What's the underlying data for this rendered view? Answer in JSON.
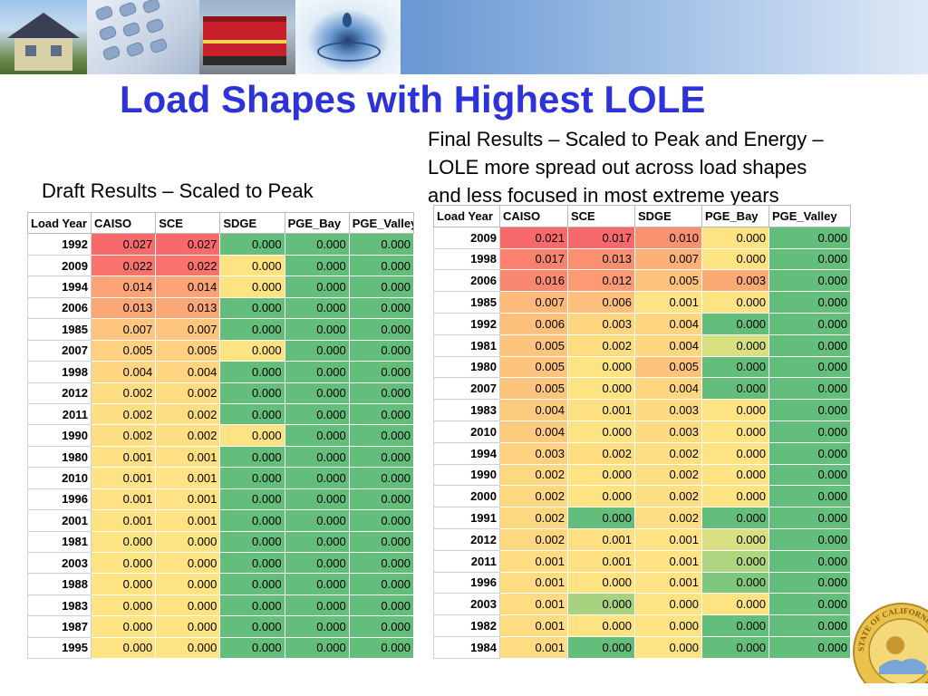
{
  "title": "Load Shapes with Highest LOLE",
  "final_caption_lines": [
    "Final Results – Scaled to Peak and Energy –",
    "LOLE more spread out across load shapes",
    "and less focused in most extreme years"
  ],
  "draft_caption": "Draft Results – Scaled to Peak",
  "seal_text": "STATE OF CALIFORNIA · COMMISSION",
  "headers": [
    "Load Year",
    "CAISO",
    "SCE",
    "SDGE",
    "PGE_Bay",
    "PGE_Valley"
  ],
  "draft_rows": [
    [
      "1992",
      "0.027",
      "0.027",
      "0.000",
      "0.000",
      "0.000"
    ],
    [
      "2009",
      "0.022",
      "0.022",
      "0.000",
      "0.000",
      "0.000"
    ],
    [
      "1994",
      "0.014",
      "0.014",
      "0.000",
      "0.000",
      "0.000"
    ],
    [
      "2006",
      "0.013",
      "0.013",
      "0.000",
      "0.000",
      "0.000"
    ],
    [
      "1985",
      "0.007",
      "0.007",
      "0.000",
      "0.000",
      "0.000"
    ],
    [
      "2007",
      "0.005",
      "0.005",
      "0.000",
      "0.000",
      "0.000"
    ],
    [
      "1998",
      "0.004",
      "0.004",
      "0.000",
      "0.000",
      "0.000"
    ],
    [
      "2012",
      "0.002",
      "0.002",
      "0.000",
      "0.000",
      "0.000"
    ],
    [
      "2011",
      "0.002",
      "0.002",
      "0.000",
      "0.000",
      "0.000"
    ],
    [
      "1990",
      "0.002",
      "0.002",
      "0.000",
      "0.000",
      "0.000"
    ],
    [
      "1980",
      "0.001",
      "0.001",
      "0.000",
      "0.000",
      "0.000"
    ],
    [
      "2010",
      "0.001",
      "0.001",
      "0.000",
      "0.000",
      "0.000"
    ],
    [
      "1996",
      "0.001",
      "0.001",
      "0.000",
      "0.000",
      "0.000"
    ],
    [
      "2001",
      "0.001",
      "0.001",
      "0.000",
      "0.000",
      "0.000"
    ],
    [
      "1981",
      "0.000",
      "0.000",
      "0.000",
      "0.000",
      "0.000"
    ],
    [
      "2003",
      "0.000",
      "0.000",
      "0.000",
      "0.000",
      "0.000"
    ],
    [
      "1988",
      "0.000",
      "0.000",
      "0.000",
      "0.000",
      "0.000"
    ],
    [
      "1983",
      "0.000",
      "0.000",
      "0.000",
      "0.000",
      "0.000"
    ],
    [
      "1987",
      "0.000",
      "0.000",
      "0.000",
      "0.000",
      "0.000"
    ],
    [
      "1995",
      "0.000",
      "0.000",
      "0.000",
      "0.000",
      "0.000"
    ]
  ],
  "draft_colors": [
    [
      "#f8696b",
      "#f8696b",
      "#63be7b",
      "#63be7b",
      "#63be7b"
    ],
    [
      "#f8736c",
      "#f8736c",
      "#fee383",
      "#63be7b",
      "#63be7b"
    ],
    [
      "#fba276",
      "#fba276",
      "#fee383",
      "#63be7b",
      "#63be7b"
    ],
    [
      "#fba776",
      "#fba776",
      "#63be7b",
      "#63be7b",
      "#63be7b"
    ],
    [
      "#fdc57d",
      "#fdc57d",
      "#63be7b",
      "#63be7b",
      "#63be7b"
    ],
    [
      "#fed07f",
      "#fed07f",
      "#fee383",
      "#63be7b",
      "#63be7b"
    ],
    [
      "#fed580",
      "#fed580",
      "#63be7b",
      "#63be7b",
      "#63be7b"
    ],
    [
      "#fedc82",
      "#fedc82",
      "#63be7b",
      "#63be7b",
      "#63be7b"
    ],
    [
      "#fede82",
      "#fede82",
      "#63be7b",
      "#63be7b",
      "#63be7b"
    ],
    [
      "#fede82",
      "#fede82",
      "#fee383",
      "#63be7b",
      "#63be7b"
    ],
    [
      "#fee183",
      "#fee183",
      "#63be7b",
      "#63be7b",
      "#63be7b"
    ],
    [
      "#fee283",
      "#fee283",
      "#63be7b",
      "#63be7b",
      "#63be7b"
    ],
    [
      "#fee283",
      "#fee283",
      "#63be7b",
      "#63be7b",
      "#63be7b"
    ],
    [
      "#fee283",
      "#fee283",
      "#63be7b",
      "#63be7b",
      "#63be7b"
    ],
    [
      "#fee383",
      "#fee383",
      "#63be7b",
      "#63be7b",
      "#63be7b"
    ],
    [
      "#fee383",
      "#fee383",
      "#63be7b",
      "#63be7b",
      "#63be7b"
    ],
    [
      "#fee383",
      "#fee383",
      "#63be7b",
      "#63be7b",
      "#63be7b"
    ],
    [
      "#fee383",
      "#fee383",
      "#63be7b",
      "#63be7b",
      "#63be7b"
    ],
    [
      "#fee383",
      "#fee383",
      "#63be7b",
      "#63be7b",
      "#63be7b"
    ],
    [
      "#fee383",
      "#fee383",
      "#63be7b",
      "#63be7b",
      "#63be7b"
    ]
  ],
  "final_rows": [
    [
      "2009",
      "0.021",
      "0.017",
      "0.010",
      "0.000",
      "0.000"
    ],
    [
      "1998",
      "0.017",
      "0.013",
      "0.007",
      "0.000",
      "0.000"
    ],
    [
      "2006",
      "0.016",
      "0.012",
      "0.005",
      "0.003",
      "0.000"
    ],
    [
      "1985",
      "0.007",
      "0.006",
      "0.001",
      "0.000",
      "0.000"
    ],
    [
      "1992",
      "0.006",
      "0.003",
      "0.004",
      "0.000",
      "0.000"
    ],
    [
      "1981",
      "0.005",
      "0.002",
      "0.004",
      "0.000",
      "0.000"
    ],
    [
      "1980",
      "0.005",
      "0.000",
      "0.005",
      "0.000",
      "0.000"
    ],
    [
      "2007",
      "0.005",
      "0.000",
      "0.004",
      "0.000",
      "0.000"
    ],
    [
      "1983",
      "0.004",
      "0.001",
      "0.003",
      "0.000",
      "0.000"
    ],
    [
      "2010",
      "0.004",
      "0.000",
      "0.003",
      "0.000",
      "0.000"
    ],
    [
      "1994",
      "0.003",
      "0.002",
      "0.002",
      "0.000",
      "0.000"
    ],
    [
      "1990",
      "0.002",
      "0.000",
      "0.002",
      "0.000",
      "0.000"
    ],
    [
      "2000",
      "0.002",
      "0.000",
      "0.002",
      "0.000",
      "0.000"
    ],
    [
      "1991",
      "0.002",
      "0.000",
      "0.002",
      "0.000",
      "0.000"
    ],
    [
      "2012",
      "0.002",
      "0.001",
      "0.001",
      "0.000",
      "0.000"
    ],
    [
      "2011",
      "0.001",
      "0.001",
      "0.001",
      "0.000",
      "0.000"
    ],
    [
      "1996",
      "0.001",
      "0.000",
      "0.001",
      "0.000",
      "0.000"
    ],
    [
      "2003",
      "0.001",
      "0.000",
      "0.000",
      "0.000",
      "0.000"
    ],
    [
      "1982",
      "0.001",
      "0.000",
      "0.000",
      "0.000",
      "0.000"
    ],
    [
      "1984",
      "0.001",
      "0.000",
      "0.000",
      "0.000",
      "0.000"
    ]
  ],
  "final_colors": [
    [
      "#f8696b",
      "#f8696b",
      "#f8916f",
      "#fee383",
      "#63be7b"
    ],
    [
      "#f9816e",
      "#fa8f71",
      "#fbb177",
      "#fee383",
      "#63be7b"
    ],
    [
      "#f98870",
      "#fb9a73",
      "#fdc37c",
      "#fba975",
      "#63be7b"
    ],
    [
      "#fcb97a",
      "#fdc07c",
      "#fee283",
      "#fee383",
      "#63be7b"
    ],
    [
      "#fdbf7c",
      "#fed57f",
      "#fed680",
      "#63be7b",
      "#63be7b"
    ],
    [
      "#fdc47d",
      "#fedd81",
      "#fed680",
      "#d7df81",
      "#63be7b"
    ],
    [
      "#fdc47d",
      "#fee383",
      "#fdc37c",
      "#63be7b",
      "#63be7b"
    ],
    [
      "#fdc47d",
      "#fee383",
      "#fed680",
      "#63be7b",
      "#63be7b"
    ],
    [
      "#fdcb7e",
      "#fee083",
      "#fedb81",
      "#fee383",
      "#63be7b"
    ],
    [
      "#fdcb7e",
      "#fee383",
      "#fedb81",
      "#fee383",
      "#63be7b"
    ],
    [
      "#fed180",
      "#fedd81",
      "#fede82",
      "#fee383",
      "#63be7b"
    ],
    [
      "#fed781",
      "#fee383",
      "#fede82",
      "#fee383",
      "#63be7b"
    ],
    [
      "#fed781",
      "#fee383",
      "#fede82",
      "#fee383",
      "#63be7b"
    ],
    [
      "#fed781",
      "#63be7b",
      "#fede82",
      "#63be7b",
      "#63be7b"
    ],
    [
      "#fed781",
      "#fee083",
      "#fee283",
      "#d7df81",
      "#63be7b"
    ],
    [
      "#fedd82",
      "#fee083",
      "#fee283",
      "#b0d580",
      "#63be7b"
    ],
    [
      "#fedd82",
      "#fee383",
      "#fee283",
      "#7fc77c",
      "#63be7b"
    ],
    [
      "#fedd82",
      "#a8d27f",
      "#fee383",
      "#fee383",
      "#63be7b"
    ],
    [
      "#fedd82",
      "#fee383",
      "#fee383",
      "#63be7b",
      "#63be7b"
    ],
    [
      "#fedd82",
      "#63be7b",
      "#fee383",
      "#63be7b",
      "#63be7b"
    ]
  ]
}
